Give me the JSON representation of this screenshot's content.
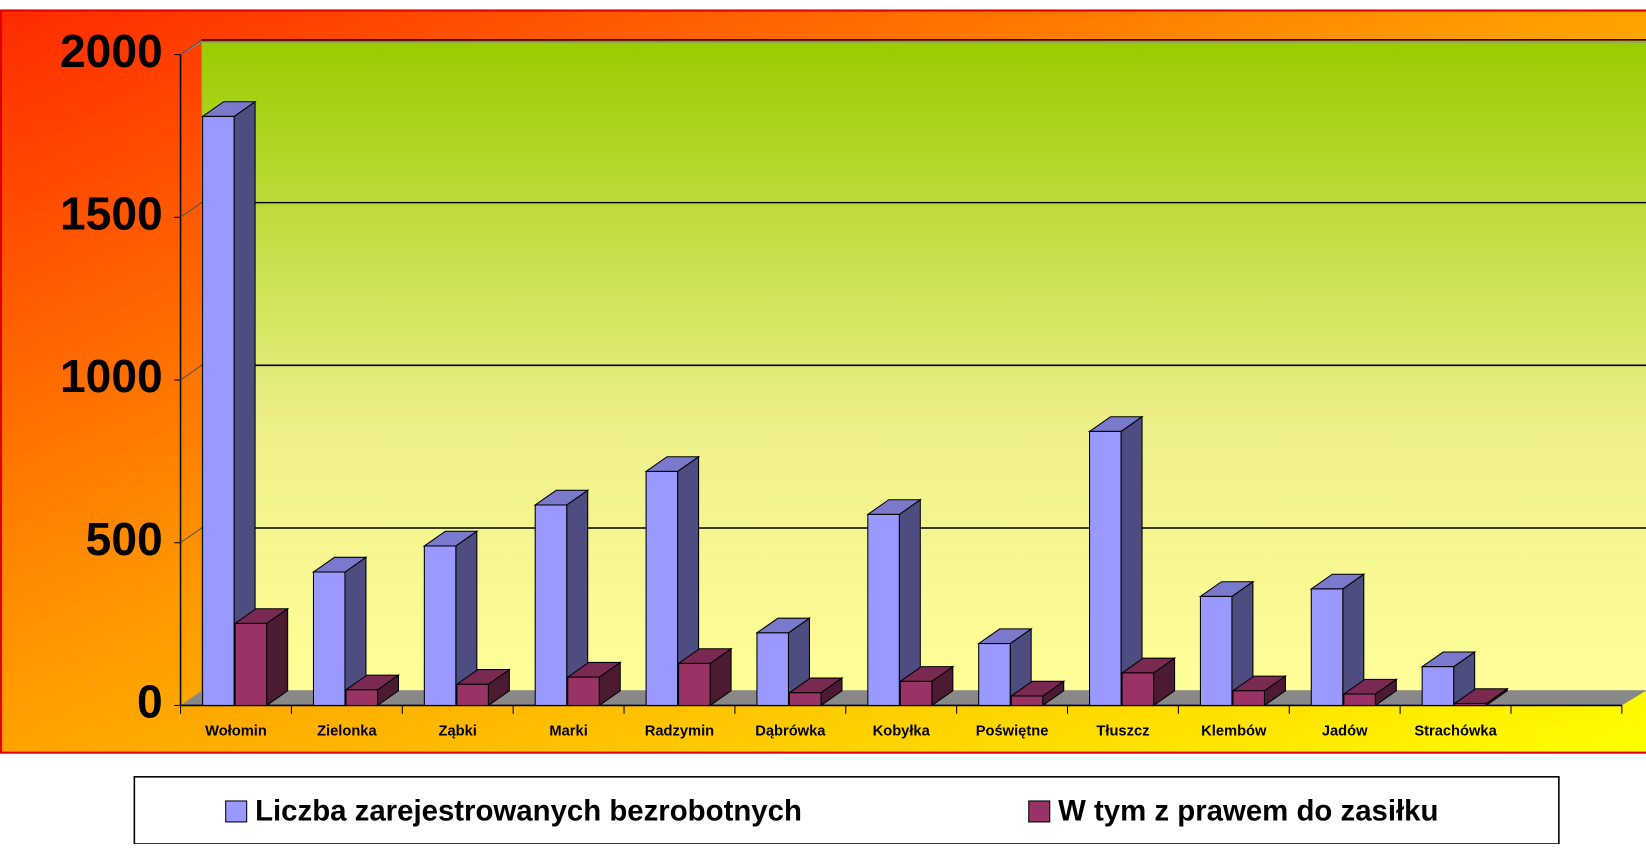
{
  "chart_data": {
    "type": "bar3d",
    "categories": [
      "Wołomin",
      "Zielonka",
      "Ząbki",
      "Marki",
      "Radzymin",
      "Dąbrówka",
      "Kobyłka",
      "Poświętne",
      "Tłuszcz",
      "Klembów",
      "Jadów",
      "Strachówka"
    ],
    "series": [
      {
        "name": "Liczba zarejestrowanych bezrobotnych",
        "color": "#9999ff",
        "values": [
          1810,
          410,
          490,
          616,
          719,
          223,
          587,
          190,
          842,
          335,
          358,
          119
        ]
      },
      {
        "name": "W tym z prawem do zasiłku",
        "color": "#993366",
        "values": [
          252,
          48,
          65,
          87,
          129,
          39,
          74,
          29,
          100,
          45,
          35,
          6
        ]
      }
    ],
    "ylim": [
      0,
      2000
    ],
    "yticks": [
      0,
      500,
      1000,
      1500,
      2000
    ],
    "grid": true,
    "legend": "bottom"
  }
}
